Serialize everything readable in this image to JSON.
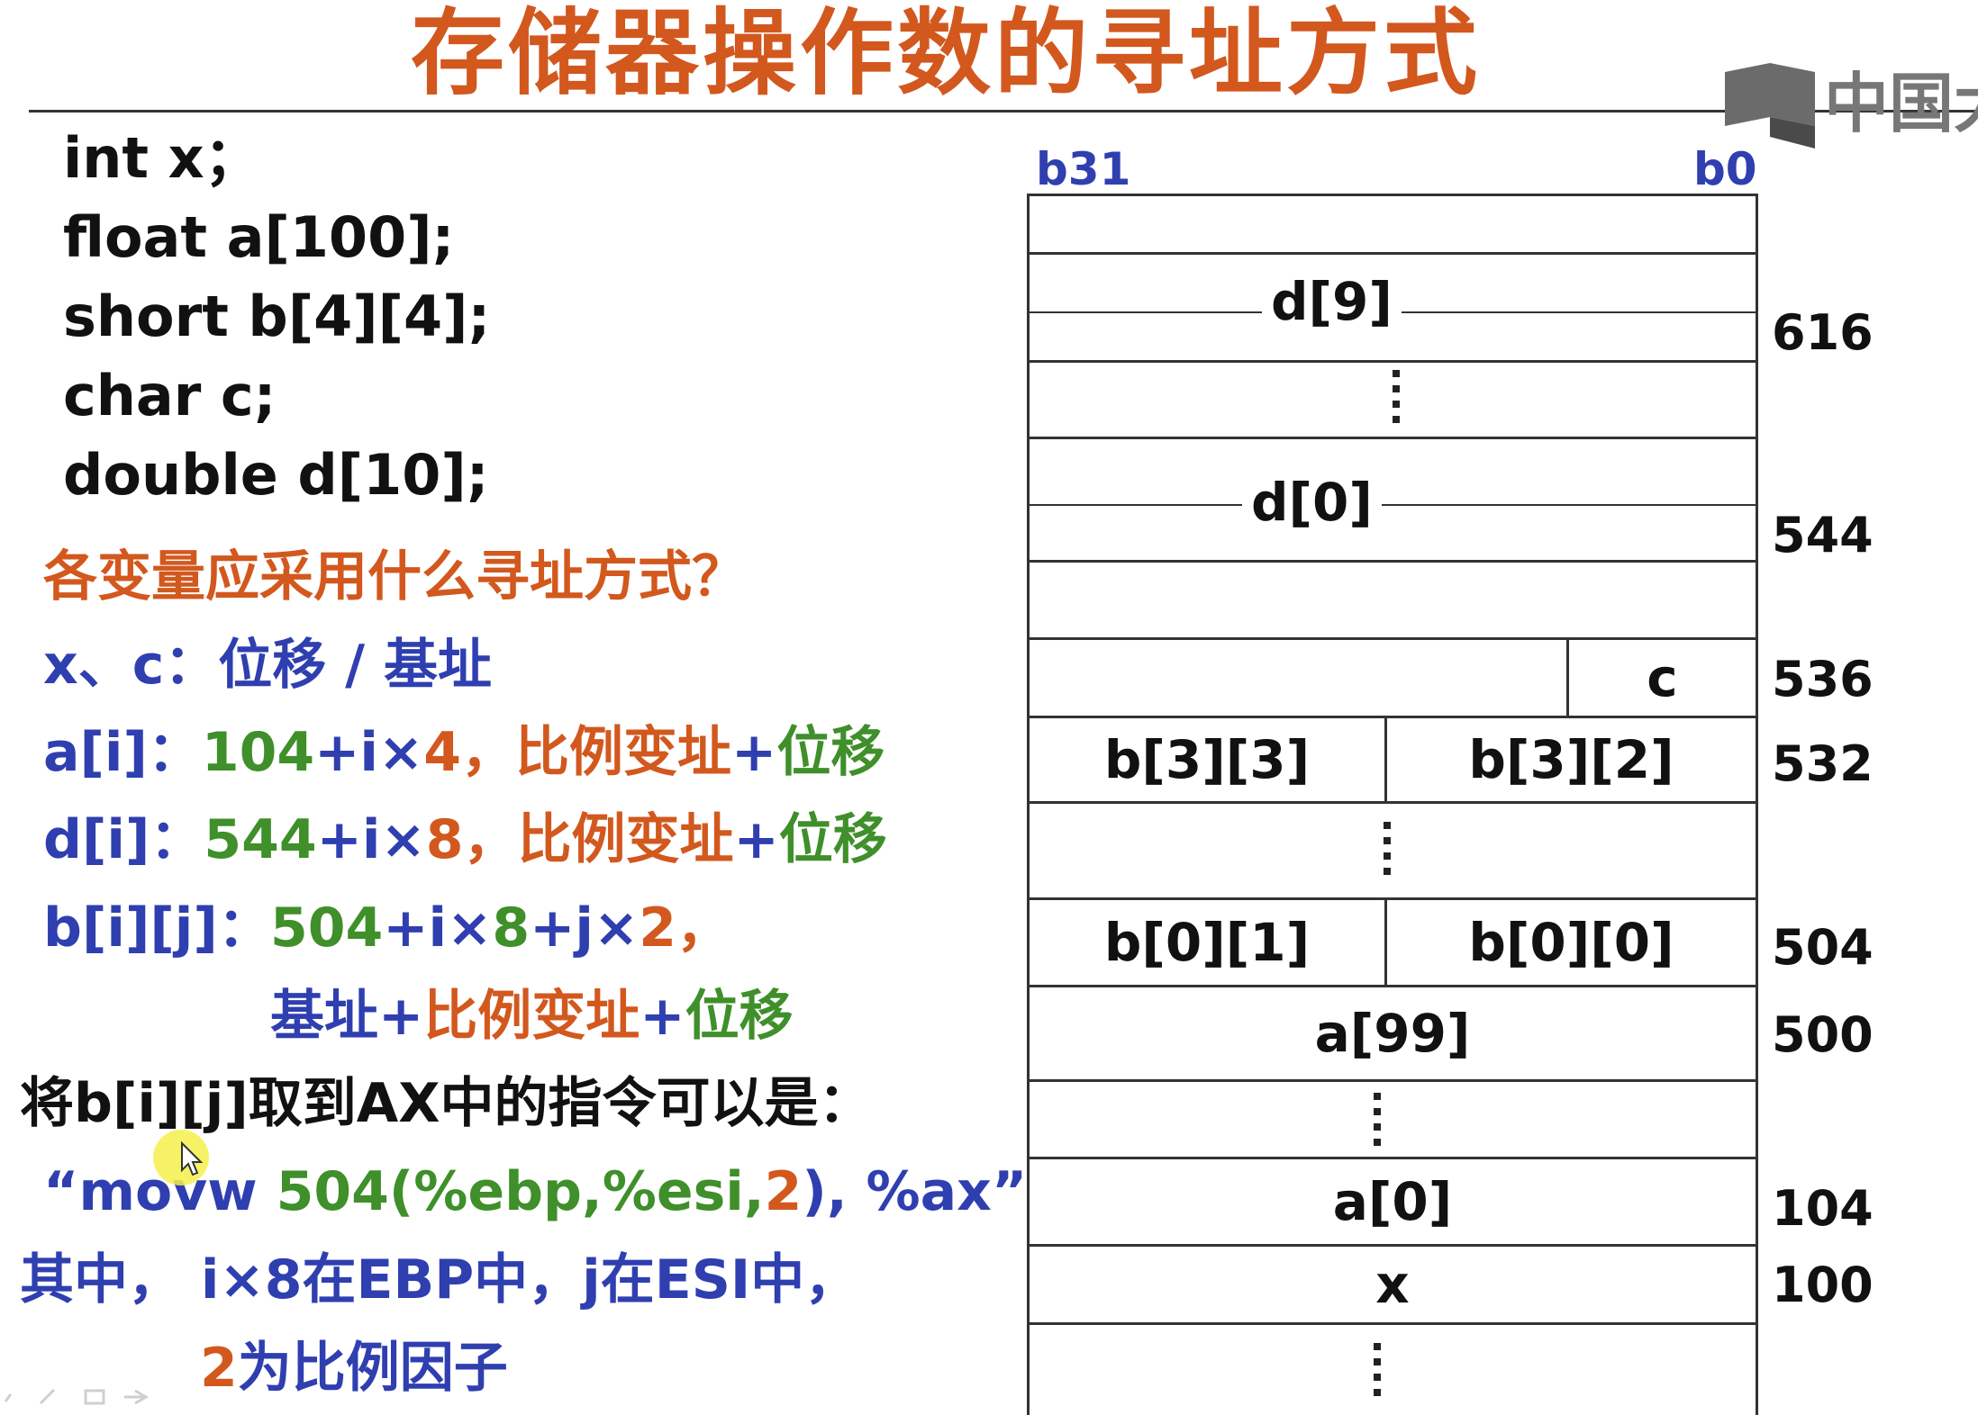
{
  "title": "存储器操作数的寻址方式",
  "logo": {
    "text": "中国大"
  },
  "code_lines": [
    "int x；",
    "float a[100];",
    "short b[4][4];",
    "char c;",
    "double d[10];"
  ],
  "question": "各变量应采用什么寻址方式？",
  "answers": {
    "xc": {
      "var": "x、c：",
      "mode": "位移 / 基址"
    },
    "a": {
      "var": "a[i]：",
      "base": "104",
      "plus": "+i×",
      "scale": "4",
      "comma": "，",
      "mode": "比例变址",
      "plus2": "+",
      "mode2": "位移"
    },
    "d": {
      "var": "d[i]：",
      "base": "544",
      "plus": "+i×",
      "scale": "8",
      "comma": "，",
      "mode": "比例变址",
      "plus2": "+",
      "mode2": "位移"
    },
    "b": {
      "var": "b[i][j]：",
      "base": "504",
      "plus": "+i×",
      "scale1": "8",
      "plus_j": "+j×",
      "scale2": "2",
      "comma": "，",
      "mode1": "基址",
      "plus2": "+",
      "mode2": "比例变址",
      "plus3": "+",
      "mode3": "位移"
    }
  },
  "instruction": {
    "intro": "将b[i][j]取到AX中的指令可以是：",
    "q_open": "“",
    "op": "movw",
    "disp": "504(%ebp,%esi,",
    "scale": "2",
    "close": "),",
    "reg": "%ax",
    "q_close": "”",
    "note1": "其中， i×8在EBP中，j在ESI中，",
    "note2_num": "2",
    "note2_text": "为比例因子"
  },
  "memory": {
    "bit_high": "b31",
    "bit_low": "b0",
    "labels": {
      "d9": "d[9]",
      "d0": "d[0]",
      "c": "c",
      "b33": "b[3][3]",
      "b32": "b[3][2]",
      "b01": "b[0][1]",
      "b00": "b[0][0]",
      "a99": "a[99]",
      "a0": "a[0]",
      "x": "x"
    },
    "addresses": {
      "a616": "616",
      "a544": "544",
      "a536": "536",
      "a532": "532",
      "a504": "504",
      "a500": "500",
      "a104": "104",
      "a100": "100"
    }
  },
  "colors": {
    "title": "#d2581e",
    "orange": "#d2581e",
    "blue": "#2f3fb0",
    "green": "#3f8f2a",
    "black": "#111111"
  }
}
